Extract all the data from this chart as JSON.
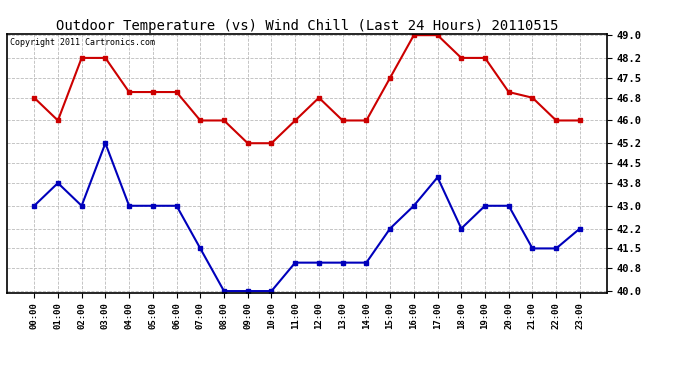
{
  "title": "Outdoor Temperature (vs) Wind Chill (Last 24 Hours) 20110515",
  "copyright": "Copyright 2011 Cartronics.com",
  "x_labels": [
    "00:00",
    "01:00",
    "02:00",
    "03:00",
    "04:00",
    "05:00",
    "06:00",
    "07:00",
    "08:00",
    "09:00",
    "10:00",
    "11:00",
    "12:00",
    "13:00",
    "14:00",
    "15:00",
    "16:00",
    "17:00",
    "18:00",
    "19:00",
    "20:00",
    "21:00",
    "22:00",
    "23:00"
  ],
  "temp_red": [
    46.8,
    46.0,
    48.2,
    48.2,
    47.0,
    47.0,
    47.0,
    46.0,
    46.0,
    45.2,
    45.2,
    46.0,
    46.8,
    46.0,
    46.0,
    47.5,
    49.0,
    49.0,
    48.2,
    48.2,
    47.0,
    46.8,
    46.0,
    46.0
  ],
  "wind_chill_blue": [
    43.0,
    43.8,
    43.0,
    45.2,
    43.0,
    43.0,
    43.0,
    41.5,
    40.0,
    40.0,
    40.0,
    41.0,
    41.0,
    41.0,
    41.0,
    42.2,
    43.0,
    44.0,
    42.2,
    43.0,
    43.0,
    41.5,
    41.5,
    42.2
  ],
  "ylim_min": 40.0,
  "ylim_max": 49.0,
  "yticks": [
    40.0,
    40.8,
    41.5,
    42.2,
    43.0,
    43.8,
    44.5,
    45.2,
    46.0,
    46.8,
    47.5,
    48.2,
    49.0
  ],
  "bg_color": "#ffffff",
  "plot_bg_color": "#ffffff",
  "grid_color": "#bbbbbb",
  "red_color": "#cc0000",
  "blue_color": "#0000bb",
  "title_fontsize": 10,
  "copyright_fontsize": 6,
  "tick_fontsize": 7.5,
  "xtick_fontsize": 6.5
}
